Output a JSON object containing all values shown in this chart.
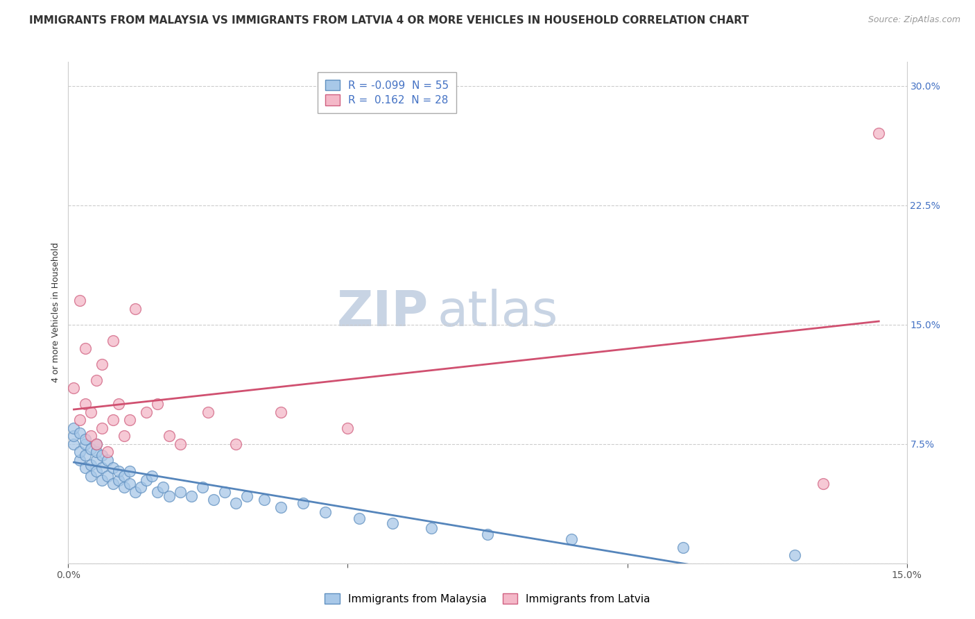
{
  "title": "IMMIGRANTS FROM MALAYSIA VS IMMIGRANTS FROM LATVIA 4 OR MORE VEHICLES IN HOUSEHOLD CORRELATION CHART",
  "source": "Source: ZipAtlas.com",
  "ylabel": "4 or more Vehicles in Household",
  "legend_labels": [
    "Immigrants from Malaysia",
    "Immigrants from Latvia"
  ],
  "r_malaysia": -0.099,
  "n_malaysia": 55,
  "r_latvia": 0.162,
  "n_latvia": 28,
  "xlim": [
    0.0,
    0.15
  ],
  "ylim": [
    0.0,
    0.315
  ],
  "xticks": [
    0.0,
    0.05,
    0.1,
    0.15
  ],
  "xticklabels": [
    "0.0%",
    "",
    "",
    "15.0%"
  ],
  "yticks_right": [
    0.075,
    0.15,
    0.225,
    0.3
  ],
  "ytick_right_labels": [
    "7.5%",
    "15.0%",
    "22.5%",
    "30.0%"
  ],
  "color_malaysia": "#a8c8e8",
  "color_latvia": "#f4b8c8",
  "edge_color_malaysia": "#6090c0",
  "edge_color_latvia": "#d06080",
  "line_color_malaysia": "#5585bb",
  "line_color_latvia": "#d05070",
  "background_color": "#ffffff",
  "watermark_zip": "ZIP",
  "watermark_atlas": "atlas",
  "watermark_color_zip": "#c8d4e4",
  "watermark_color_atlas": "#c8d4e4",
  "malaysia_x": [
    0.001,
    0.001,
    0.001,
    0.002,
    0.002,
    0.002,
    0.003,
    0.003,
    0.003,
    0.003,
    0.004,
    0.004,
    0.004,
    0.005,
    0.005,
    0.005,
    0.005,
    0.006,
    0.006,
    0.006,
    0.007,
    0.007,
    0.008,
    0.008,
    0.009,
    0.009,
    0.01,
    0.01,
    0.011,
    0.011,
    0.012,
    0.013,
    0.014,
    0.015,
    0.016,
    0.017,
    0.018,
    0.02,
    0.022,
    0.024,
    0.026,
    0.028,
    0.03,
    0.032,
    0.035,
    0.038,
    0.042,
    0.046,
    0.052,
    0.058,
    0.065,
    0.075,
    0.09,
    0.11,
    0.13
  ],
  "malaysia_y": [
    0.075,
    0.08,
    0.085,
    0.065,
    0.07,
    0.082,
    0.06,
    0.068,
    0.075,
    0.078,
    0.055,
    0.062,
    0.072,
    0.058,
    0.065,
    0.07,
    0.075,
    0.052,
    0.06,
    0.068,
    0.055,
    0.065,
    0.05,
    0.06,
    0.052,
    0.058,
    0.048,
    0.055,
    0.05,
    0.058,
    0.045,
    0.048,
    0.052,
    0.055,
    0.045,
    0.048,
    0.042,
    0.045,
    0.042,
    0.048,
    0.04,
    0.045,
    0.038,
    0.042,
    0.04,
    0.035,
    0.038,
    0.032,
    0.028,
    0.025,
    0.022,
    0.018,
    0.015,
    0.01,
    0.005
  ],
  "latvia_x": [
    0.001,
    0.002,
    0.002,
    0.003,
    0.003,
    0.004,
    0.004,
    0.005,
    0.005,
    0.006,
    0.006,
    0.007,
    0.008,
    0.008,
    0.009,
    0.01,
    0.011,
    0.012,
    0.014,
    0.016,
    0.018,
    0.02,
    0.025,
    0.03,
    0.038,
    0.05,
    0.135,
    0.145
  ],
  "latvia_y": [
    0.11,
    0.09,
    0.165,
    0.1,
    0.135,
    0.08,
    0.095,
    0.075,
    0.115,
    0.085,
    0.125,
    0.07,
    0.09,
    0.14,
    0.1,
    0.08,
    0.09,
    0.16,
    0.095,
    0.1,
    0.08,
    0.075,
    0.095,
    0.075,
    0.095,
    0.085,
    0.05,
    0.27
  ],
  "title_fontsize": 11,
  "axis_label_fontsize": 9,
  "tick_fontsize": 10,
  "legend_fontsize": 11,
  "watermark_fontsize": 52,
  "source_fontsize": 9
}
